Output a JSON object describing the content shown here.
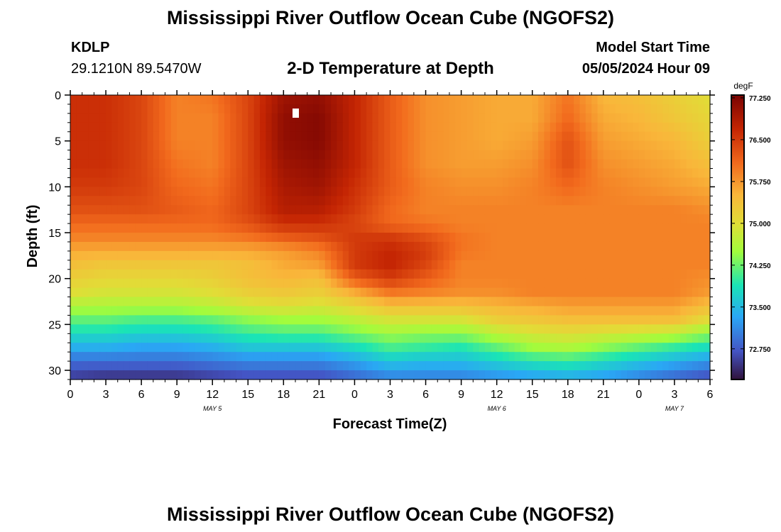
{
  "header": {
    "title": "Mississippi River Outflow Ocean Cube (NGOFS2)",
    "station_id": "KDLP",
    "station_coords": "29.1210N  89.5470W",
    "plot_title": "2-D Temperature at Depth",
    "model_start_label": "Model Start Time",
    "model_start_value": "05/05/2024 Hour 09"
  },
  "footer": {
    "title": "Mississippi River Outflow Ocean Cube (NGOFS2)"
  },
  "chart_data": {
    "type": "heatmap",
    "title": "2-D Temperature at Depth",
    "xlabel": "Forecast Time(Z)",
    "ylabel": "Depth (ft)",
    "x_range_hours": [
      0,
      54
    ],
    "y_range_ft": [
      0,
      31
    ],
    "x_ticks": [
      {
        "h": 0,
        "label": "0"
      },
      {
        "h": 3,
        "label": "3"
      },
      {
        "h": 6,
        "label": "6"
      },
      {
        "h": 9,
        "label": "9"
      },
      {
        "h": 12,
        "label": "12"
      },
      {
        "h": 15,
        "label": "15"
      },
      {
        "h": 18,
        "label": "18"
      },
      {
        "h": 21,
        "label": "21"
      },
      {
        "h": 24,
        "label": "0"
      },
      {
        "h": 27,
        "label": "3"
      },
      {
        "h": 30,
        "label": "6"
      },
      {
        "h": 33,
        "label": "9"
      },
      {
        "h": 36,
        "label": "12"
      },
      {
        "h": 39,
        "label": "15"
      },
      {
        "h": 42,
        "label": "18"
      },
      {
        "h": 45,
        "label": "21"
      },
      {
        "h": 48,
        "label": "0"
      },
      {
        "h": 51,
        "label": "3"
      },
      {
        "h": 54,
        "label": "6"
      }
    ],
    "y_ticks": [
      0,
      5,
      10,
      15,
      20,
      25,
      30
    ],
    "date_labels": [
      {
        "h": 12,
        "label": "MAY 5"
      },
      {
        "h": 36,
        "label": "MAY 6"
      },
      {
        "h": 51,
        "label": "MAY 7"
      }
    ],
    "colorbar": {
      "unit": "degF",
      "min": 72.2,
      "max": 77.3,
      "ticks": [
        "77.250",
        "76.500",
        "75.750",
        "75.000",
        "74.250",
        "73.500",
        "72.750"
      ]
    },
    "grid": {
      "x_hours": [
        0,
        3,
        6,
        9,
        12,
        15,
        18,
        21,
        24,
        27,
        30,
        33,
        36,
        39,
        42,
        45,
        48,
        51,
        54
      ],
      "y_depths": [
        0,
        2.5,
        5,
        7.5,
        10,
        12.5,
        14,
        15.5,
        17,
        18.5,
        20,
        21.5,
        23,
        24.5,
        26,
        27.5,
        29,
        31
      ],
      "values": [
        [
          76.6,
          76.6,
          76.4,
          75.9,
          76.0,
          76.4,
          77.0,
          77.1,
          76.7,
          76.2,
          75.8,
          75.7,
          75.6,
          75.6,
          76.0,
          75.5,
          75.4,
          75.2,
          75.0
        ],
        [
          76.6,
          76.6,
          76.4,
          75.9,
          75.9,
          76.4,
          77.1,
          77.2,
          76.7,
          76.2,
          75.8,
          75.7,
          75.6,
          75.6,
          76.1,
          75.6,
          75.5,
          75.3,
          75.1
        ],
        [
          76.6,
          76.6,
          76.4,
          75.9,
          75.9,
          76.4,
          77.1,
          77.2,
          76.7,
          76.2,
          75.8,
          75.7,
          75.6,
          75.7,
          76.3,
          75.7,
          75.6,
          75.5,
          75.2
        ],
        [
          76.6,
          76.6,
          76.4,
          76.0,
          75.9,
          76.4,
          77.0,
          77.1,
          76.7,
          76.2,
          75.8,
          75.7,
          75.7,
          75.8,
          76.3,
          75.8,
          75.7,
          75.6,
          75.4
        ],
        [
          76.5,
          76.5,
          76.4,
          76.1,
          76.0,
          76.4,
          76.9,
          77.0,
          76.6,
          76.2,
          75.9,
          75.8,
          75.8,
          75.9,
          76.1,
          75.9,
          75.8,
          75.7,
          75.6
        ],
        [
          76.3,
          76.3,
          76.3,
          76.2,
          76.1,
          76.4,
          76.8,
          76.8,
          76.5,
          76.1,
          75.9,
          75.9,
          75.9,
          75.9,
          75.9,
          75.9,
          75.9,
          75.9,
          75.8
        ],
        [
          76.1,
          76.1,
          76.1,
          76.1,
          76.1,
          76.3,
          76.6,
          76.6,
          76.4,
          76.1,
          76.0,
          75.9,
          75.9,
          75.9,
          75.9,
          75.9,
          75.9,
          75.9,
          75.9
        ],
        [
          75.9,
          75.9,
          75.9,
          75.9,
          75.9,
          76.0,
          76.2,
          76.3,
          76.5,
          76.5,
          76.3,
          76.0,
          75.9,
          75.9,
          75.9,
          75.9,
          75.9,
          75.9,
          75.9
        ],
        [
          75.6,
          75.6,
          75.6,
          75.6,
          75.6,
          75.6,
          75.7,
          75.9,
          76.5,
          76.7,
          76.5,
          76.0,
          75.9,
          75.9,
          75.9,
          75.9,
          75.9,
          75.9,
          75.9
        ],
        [
          75.4,
          75.3,
          75.3,
          75.3,
          75.3,
          75.4,
          75.6,
          75.7,
          76.5,
          76.7,
          76.4,
          75.9,
          75.9,
          75.9,
          75.9,
          75.9,
          75.9,
          75.9,
          75.9
        ],
        [
          75.2,
          75.1,
          75.1,
          75.1,
          75.2,
          75.4,
          75.5,
          75.4,
          76.2,
          76.5,
          76.2,
          75.9,
          75.9,
          75.9,
          75.9,
          75.9,
          75.9,
          75.9,
          75.8
        ],
        [
          75.0,
          74.9,
          74.9,
          74.9,
          75.0,
          75.2,
          75.3,
          75.2,
          75.6,
          76.0,
          75.9,
          75.8,
          75.8,
          75.9,
          75.9,
          75.9,
          75.9,
          75.9,
          75.7
        ],
        [
          74.6,
          74.6,
          74.6,
          74.6,
          74.7,
          74.9,
          75.0,
          74.9,
          75.1,
          75.4,
          75.4,
          75.4,
          75.5,
          75.6,
          75.7,
          75.7,
          75.7,
          75.7,
          75.4
        ],
        [
          74.2,
          74.2,
          74.1,
          74.1,
          74.2,
          74.4,
          74.5,
          74.5,
          74.7,
          74.9,
          74.9,
          74.9,
          75.2,
          75.3,
          75.4,
          75.4,
          75.4,
          75.4,
          75.0
        ],
        [
          73.8,
          73.8,
          73.7,
          73.7,
          73.8,
          74.0,
          74.1,
          74.1,
          74.3,
          74.5,
          74.4,
          74.4,
          74.7,
          74.9,
          75.0,
          74.9,
          74.8,
          74.7,
          74.4
        ],
        [
          73.4,
          73.4,
          73.3,
          73.3,
          73.4,
          73.6,
          73.6,
          73.6,
          73.8,
          74.1,
          74.0,
          73.9,
          74.2,
          74.5,
          74.6,
          74.4,
          74.2,
          74.0,
          73.8
        ],
        [
          72.9,
          72.9,
          72.9,
          72.9,
          73.0,
          73.1,
          73.1,
          73.1,
          73.3,
          73.6,
          73.5,
          73.5,
          73.7,
          73.9,
          74.0,
          73.8,
          73.6,
          73.4,
          73.2
        ],
        [
          72.5,
          72.4,
          72.4,
          72.4,
          72.5,
          72.6,
          72.6,
          72.6,
          72.8,
          73.0,
          73.0,
          73.0,
          73.1,
          73.2,
          73.3,
          73.2,
          73.0,
          72.8,
          72.6
        ]
      ]
    }
  }
}
